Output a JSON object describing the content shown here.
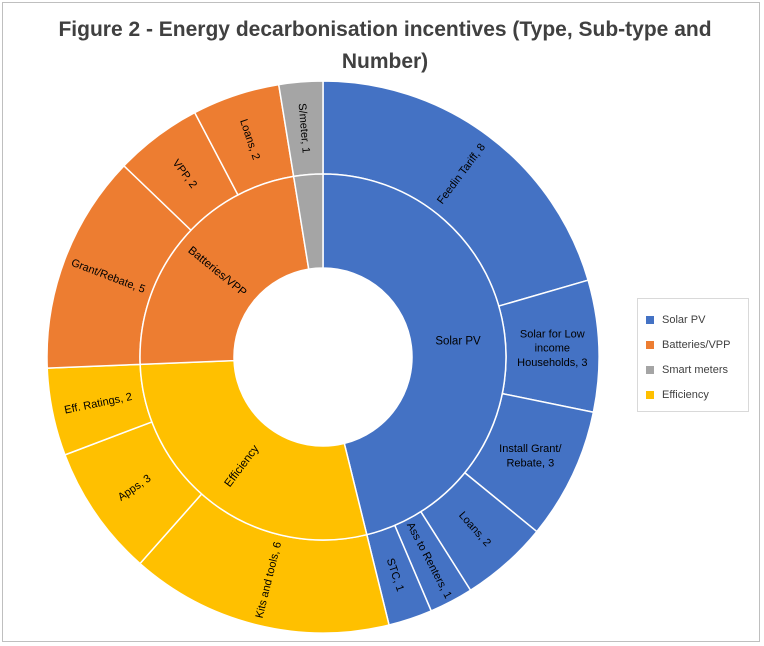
{
  "chart_data": {
    "type": "sunburst",
    "title": "Figure 2 - Energy decarbonisation incentives (Type, Sub-type and Number)",
    "legend_position": "right",
    "colors": {
      "Solar PV": "#4472C4",
      "Batteries/VPP": "#ED7D31",
      "Smart meters": "#A5A5A5",
      "Efficiency": "#FFC000"
    },
    "inner_labels": {
      "Solar PV": "Solar PV",
      "Batteries/VPP": "Batteries/VPP",
      "Smart meters": "",
      "Efficiency": "Efficiency"
    },
    "categories": [
      {
        "name": "Solar PV",
        "children": [
          {
            "label": "Feedin Tariff, 8",
            "value": 8
          },
          {
            "label": "Solar for Low income Households, 3",
            "value": 3
          },
          {
            "label": "Install Grant/ Rebate, 3",
            "value": 3
          },
          {
            "label": "Loans, 2",
            "value": 2
          },
          {
            "label": "Ass to Renters, 1",
            "value": 1
          },
          {
            "label": "STC, 1",
            "value": 1
          }
        ]
      },
      {
        "name": "Efficiency",
        "children": [
          {
            "label": "Kits and tools, 6",
            "value": 6
          },
          {
            "label": "Apps, 3",
            "value": 3
          },
          {
            "label": "Eff. Ratings, 2",
            "value": 2
          }
        ]
      },
      {
        "name": "Batteries/VPP",
        "children": [
          {
            "label": "Grant/Rebate, 5",
            "value": 5
          },
          {
            "label": "VPP, 2",
            "value": 2
          },
          {
            "label": "Loans, 2",
            "value": 2
          }
        ]
      },
      {
        "name": "Smart meters",
        "children": [
          {
            "label": "S/meter, 1",
            "value": 1
          }
        ]
      }
    ]
  }
}
